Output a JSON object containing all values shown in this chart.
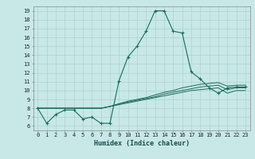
{
  "background_color": "#c8e8e8",
  "grid_color": "#afd4d4",
  "line_color": "#1a6b5a",
  "xlabel": "Humidex (Indice chaleur)",
  "xlim": [
    -0.5,
    23.5
  ],
  "ylim": [
    5.5,
    19.5
  ],
  "xticks": [
    0,
    1,
    2,
    3,
    4,
    5,
    6,
    7,
    8,
    9,
    10,
    11,
    12,
    13,
    14,
    15,
    16,
    17,
    18,
    19,
    20,
    21,
    22,
    23
  ],
  "yticks": [
    6,
    7,
    8,
    9,
    10,
    11,
    12,
    13,
    14,
    15,
    16,
    17,
    18,
    19
  ],
  "lines": [
    [
      8.0,
      6.3,
      7.3,
      7.8,
      7.8,
      6.8,
      7.0,
      6.3,
      6.3,
      11.1,
      13.8,
      15.0,
      16.7,
      19.0,
      19.0,
      16.7,
      16.5,
      12.1,
      11.3,
      10.3,
      9.7,
      10.3,
      10.4,
      10.4
    ],
    [
      8.0,
      8.0,
      8.0,
      8.0,
      8.0,
      8.0,
      8.0,
      8.0,
      8.2,
      8.5,
      8.8,
      9.0,
      9.2,
      9.5,
      9.8,
      10.0,
      10.3,
      10.5,
      10.7,
      10.8,
      10.9,
      10.5,
      10.6,
      10.6
    ],
    [
      8.0,
      8.0,
      8.0,
      8.0,
      8.0,
      8.0,
      8.0,
      8.0,
      8.2,
      8.5,
      8.7,
      8.9,
      9.1,
      9.3,
      9.6,
      9.8,
      10.0,
      10.2,
      10.4,
      10.5,
      10.6,
      10.1,
      10.3,
      10.3
    ],
    [
      8.0,
      8.0,
      8.0,
      8.0,
      8.0,
      8.0,
      8.0,
      8.0,
      8.2,
      8.4,
      8.6,
      8.8,
      9.0,
      9.2,
      9.4,
      9.6,
      9.8,
      10.0,
      10.1,
      10.2,
      10.3,
      9.7,
      10.0,
      10.0
    ]
  ],
  "tick_fontsize": 5.0,
  "xlabel_fontsize": 6.0
}
